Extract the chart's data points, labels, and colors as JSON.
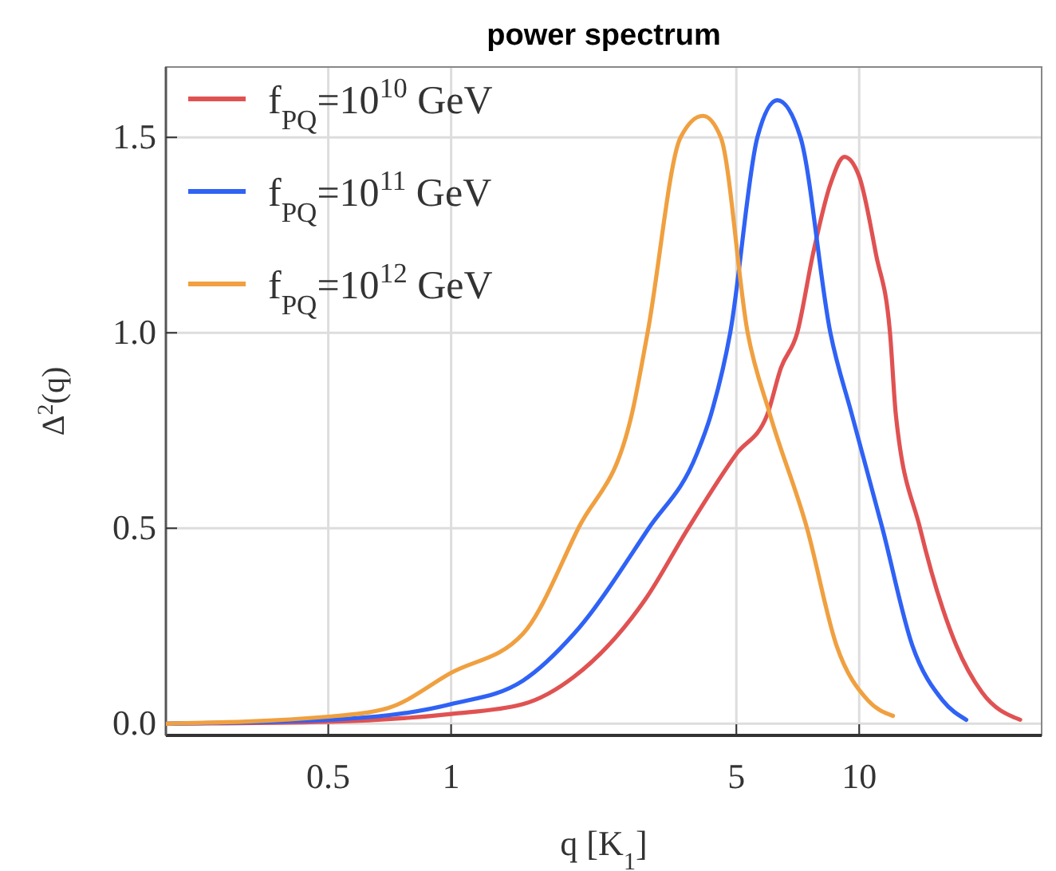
{
  "chart_data": {
    "type": "line",
    "title": "power spectrum",
    "xlabel": "q [K$_{1}$]",
    "ylabel": "Δ$^{2}$(q)",
    "log": "x",
    "xlim": [
      0.2,
      28
    ],
    "ylim": [
      -0.03,
      1.68
    ],
    "xticks": [
      0.5,
      1,
      5,
      10
    ],
    "yticks": [
      {
        "value": 0,
        "label": "0.0"
      },
      0.5,
      {
        "value": 1,
        "label": "1.0"
      },
      1.5
    ],
    "grid": true,
    "legend": "top left",
    "marker": "none",
    "line_style": "solid",
    "series": [
      {
        "name": "f$_{PQ}$=10$^{10}$ GeV",
        "color": "#e05252",
        "x": [
          0.2,
          0.5,
          1,
          1.5,
          2,
          3,
          3.81,
          5,
          5.95,
          6.43,
          7.05,
          7.7,
          8.5,
          9.2,
          10,
          11,
          11.9,
          12.3,
          14.1,
          17.3,
          20,
          24.8
        ],
        "values": [
          0,
          0.005,
          0.025,
          0.05,
          0.12,
          0.32,
          0.5,
          0.69,
          0.79,
          0.91,
          1.0,
          1.2,
          1.38,
          1.45,
          1.4,
          1.2,
          1.0,
          0.79,
          0.5,
          0.2,
          0.08,
          0.01
        ]
      },
      {
        "name": "f$_{PQ}$=10$^{11}$ GeV",
        "color": "#2f62f5",
        "x": [
          0.2,
          0.5,
          1,
          1.5,
          2,
          3.05,
          4,
          4.33,
          4.83,
          5.63,
          6.3,
          7.18,
          8.5,
          9.6,
          11.4,
          13.5,
          16,
          18.3
        ],
        "values": [
          0,
          0.01,
          0.05,
          0.11,
          0.23,
          0.5,
          0.69,
          0.79,
          1.0,
          1.5,
          1.595,
          1.5,
          1.0,
          0.79,
          0.5,
          0.2,
          0.06,
          0.01
        ]
      },
      {
        "name": "f$_{PQ}$=10$^{12}$ GeV",
        "color": "#f0a040",
        "x": [
          0.2,
          0.5,
          0.7,
          1,
          1.5,
          2.05,
          2.77,
          3.03,
          3.65,
          4.14,
          4.58,
          5.33,
          6.05,
          7.45,
          8.8,
          10.5,
          12.1
        ],
        "values": [
          0,
          0.018,
          0.04,
          0.13,
          0.23,
          0.5,
          0.79,
          1.0,
          1.5,
          1.555,
          1.5,
          1.0,
          0.79,
          0.5,
          0.2,
          0.06,
          0.02
        ]
      }
    ]
  }
}
